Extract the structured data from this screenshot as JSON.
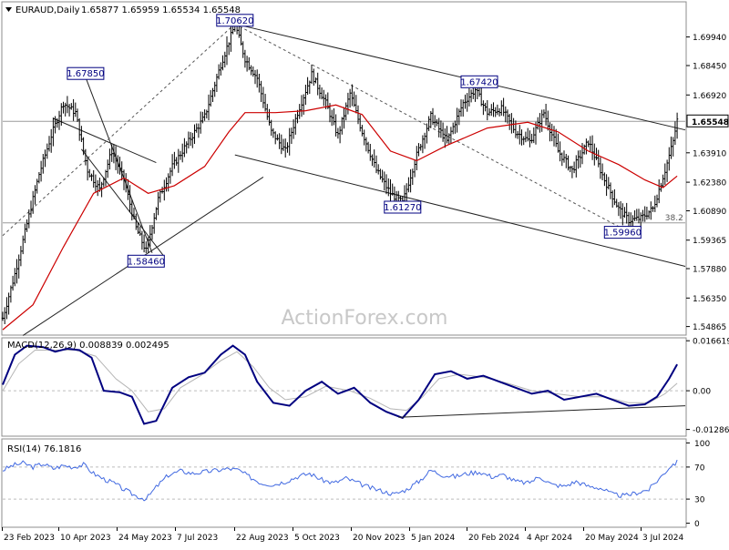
{
  "header": {
    "symbol": "EURAUD,Daily",
    "ohlc": "1.65877 1.65959 1.65534 1.65548"
  },
  "watermark": "ActionForex.com",
  "chart_data": [
    {
      "type": "candlestick",
      "title": "EURAUD,Daily",
      "y_ticks": [
        "1.69940",
        "1.68450",
        "1.66920",
        "1.63910",
        "1.62380",
        "1.60890",
        "1.59365",
        "1.57880",
        "1.56350",
        "1.54865"
      ],
      "ylim": [
        1.5442,
        1.7177
      ],
      "last_price": "1.65548",
      "x_ticks": [
        "23 Feb 2023",
        "10 Apr 2023",
        "24 May 2023",
        "7 Jul 2023",
        "22 Aug 2023",
        "5 Oct 2023",
        "20 Nov 2023",
        "5 Jan 2024",
        "20 Feb 2024",
        "4 Apr 2024",
        "20 May 2024",
        "3 Jul 2024"
      ],
      "close_path": [
        [
          0,
          1.553
        ],
        [
          6,
          1.576
        ],
        [
          12,
          1.602
        ],
        [
          18,
          1.628
        ],
        [
          24,
          1.648
        ],
        [
          30,
          1.665
        ],
        [
          36,
          1.66
        ],
        [
          42,
          1.63
        ],
        [
          48,
          1.62
        ],
        [
          54,
          1.64
        ],
        [
          60,
          1.625
        ],
        [
          66,
          1.6
        ],
        [
          71,
          1.588
        ],
        [
          77,
          1.615
        ],
        [
          84,
          1.632
        ],
        [
          92,
          1.645
        ],
        [
          100,
          1.658
        ],
        [
          108,
          1.685
        ],
        [
          115,
          1.706
        ],
        [
          120,
          1.688
        ],
        [
          126,
          1.678
        ],
        [
          133,
          1.65
        ],
        [
          140,
          1.64
        ],
        [
          146,
          1.66
        ],
        [
          153,
          1.68
        ],
        [
          160,
          1.665
        ],
        [
          166,
          1.648
        ],
        [
          172,
          1.67
        ],
        [
          178,
          1.65
        ],
        [
          185,
          1.63
        ],
        [
          192,
          1.618
        ],
        [
          198,
          1.613
        ],
        [
          205,
          1.638
        ],
        [
          212,
          1.658
        ],
        [
          220,
          1.645
        ],
        [
          228,
          1.665
        ],
        [
          234,
          1.672
        ],
        [
          240,
          1.66
        ],
        [
          247,
          1.662
        ],
        [
          254,
          1.65
        ],
        [
          261,
          1.645
        ],
        [
          268,
          1.66
        ],
        [
          275,
          1.64
        ],
        [
          282,
          1.63
        ],
        [
          290,
          1.645
        ],
        [
          298,
          1.625
        ],
        [
          305,
          1.61
        ],
        [
          310,
          1.604
        ],
        [
          316,
          1.605
        ],
        [
          322,
          1.61
        ],
        [
          328,
          1.63
        ],
        [
          332,
          1.645
        ],
        [
          334,
          1.656
        ]
      ],
      "ma_path": [
        [
          0,
          1.547
        ],
        [
          15,
          1.56
        ],
        [
          30,
          1.59
        ],
        [
          45,
          1.618
        ],
        [
          60,
          1.626
        ],
        [
          72,
          1.618
        ],
        [
          85,
          1.622
        ],
        [
          100,
          1.632
        ],
        [
          112,
          1.65
        ],
        [
          120,
          1.66
        ],
        [
          135,
          1.66
        ],
        [
          150,
          1.661
        ],
        [
          165,
          1.664
        ],
        [
          178,
          1.659
        ],
        [
          192,
          1.64
        ],
        [
          205,
          1.635
        ],
        [
          220,
          1.643
        ],
        [
          240,
          1.652
        ],
        [
          260,
          1.655
        ],
        [
          275,
          1.65
        ],
        [
          290,
          1.64
        ],
        [
          305,
          1.633
        ],
        [
          318,
          1.625
        ],
        [
          327,
          1.621
        ],
        [
          334,
          1.627
        ]
      ],
      "price_labels": [
        {
          "text": "1.70620",
          "x": 115,
          "y": 1.7062
        },
        {
          "text": "1.67850",
          "x": 41,
          "y": 1.6785
        },
        {
          "text": "1.67420",
          "x": 236,
          "y": 1.6742
        },
        {
          "text": "1.61270",
          "x": 198,
          "y": 1.6127
        },
        {
          "text": "1.59960",
          "x": 307,
          "y": 1.5996
        },
        {
          "text": "1.58460",
          "x": 71,
          "y": 1.5846
        }
      ],
      "annotations": [
        {
          "text": "38.2",
          "x": 328,
          "y": 1.6026
        }
      ],
      "trend_lines": [
        {
          "style": "solid",
          "from": [
            115,
            1.7062
          ],
          "to": [
            338,
            1.651
          ]
        },
        {
          "style": "solid",
          "from": [
            115,
            1.638
          ],
          "to": [
            338,
            1.58
          ]
        },
        {
          "style": "solid",
          "from": [
            10,
            1.544
          ],
          "to": [
            129,
            1.6265
          ]
        },
        {
          "style": "solid",
          "from": [
            41,
            1.6785
          ],
          "to": [
            74,
            1.587
          ]
        },
        {
          "style": "solid",
          "from": [
            39,
            1.641
          ],
          "to": [
            80,
            1.585
          ]
        },
        {
          "style": "solid",
          "from": [
            25,
            1.657
          ],
          "to": [
            76,
            1.634
          ]
        },
        {
          "style": "dotted",
          "from": [
            0,
            1.596
          ],
          "to": [
            115,
            1.7062
          ]
        },
        {
          "style": "dotted",
          "from": [
            115,
            1.7062
          ],
          "to": [
            307,
            1.5996
          ]
        }
      ],
      "horizontal_lines": [
        1.65548,
        1.6026
      ]
    },
    {
      "type": "line",
      "title": "MACD(12,26,9) 0.008839 0.002495",
      "legend": "MACD(12,26,9) 0.008839 0.002495",
      "y_ticks": [
        "0.016619",
        "0.00",
        "-0.012864"
      ],
      "ylim": [
        -0.0151,
        0.0176
      ],
      "series": [
        {
          "points": [
            [
              0,
              0.002
            ],
            [
              6,
              0.012
            ],
            [
              12,
              0.015
            ],
            [
              20,
              0.0145
            ],
            [
              26,
              0.013
            ],
            [
              32,
              0.014
            ],
            [
              38,
              0.0135
            ],
            [
              44,
              0.011
            ],
            [
              50,
              -0.0
            ],
            [
              58,
              -0.0005
            ],
            [
              64,
              -0.002
            ],
            [
              70,
              -0.011
            ],
            [
              76,
              -0.01
            ],
            [
              84,
              0.001
            ],
            [
              92,
              0.0045
            ],
            [
              100,
              0.006
            ],
            [
              108,
              0.012
            ],
            [
              114,
              0.015
            ],
            [
              120,
              0.012
            ],
            [
              126,
              0.003
            ],
            [
              134,
              -0.004
            ],
            [
              142,
              -0.005
            ],
            [
              150,
              0.0
            ],
            [
              158,
              0.003
            ],
            [
              166,
              -0.001
            ],
            [
              174,
              0.001
            ],
            [
              182,
              -0.004
            ],
            [
              190,
              -0.007
            ],
            [
              198,
              -0.009
            ],
            [
              206,
              -0.003
            ],
            [
              214,
              0.0055
            ],
            [
              222,
              0.0065
            ],
            [
              230,
              0.004
            ],
            [
              238,
              0.005
            ],
            [
              246,
              0.003
            ],
            [
              254,
              0.001
            ],
            [
              262,
              -0.001
            ],
            [
              270,
              0.0
            ],
            [
              278,
              -0.003
            ],
            [
              286,
              -0.002
            ],
            [
              294,
              -0.001
            ],
            [
              302,
              -0.003
            ],
            [
              310,
              -0.005
            ],
            [
              318,
              -0.0045
            ],
            [
              324,
              -0.002
            ],
            [
              330,
              0.004
            ],
            [
              334,
              0.0088
            ]
          ]
        },
        {
          "points": [
            [
              0,
              0.0
            ],
            [
              8,
              0.009
            ],
            [
              16,
              0.0135
            ],
            [
              26,
              0.0135
            ],
            [
              36,
              0.0135
            ],
            [
              46,
              0.0115
            ],
            [
              56,
              0.004
            ],
            [
              64,
              0.0
            ],
            [
              72,
              -0.007
            ],
            [
              80,
              -0.006
            ],
            [
              88,
              0.001
            ],
            [
              98,
              0.005
            ],
            [
              108,
              0.01
            ],
            [
              116,
              0.013
            ],
            [
              124,
              0.008
            ],
            [
              132,
              0.001
            ],
            [
              140,
              -0.003
            ],
            [
              150,
              -0.002
            ],
            [
              160,
              0.0015
            ],
            [
              172,
              0.0
            ],
            [
              182,
              -0.0025
            ],
            [
              192,
              -0.006
            ],
            [
              200,
              -0.0065
            ],
            [
              208,
              -0.002
            ],
            [
              216,
              0.004
            ],
            [
              226,
              0.0055
            ],
            [
              238,
              0.0045
            ],
            [
              250,
              0.0025
            ],
            [
              262,
              0.0
            ],
            [
              274,
              -0.001
            ],
            [
              286,
              -0.002
            ],
            [
              298,
              -0.002
            ],
            [
              310,
              -0.004
            ],
            [
              320,
              -0.004
            ],
            [
              328,
              -0.001
            ],
            [
              334,
              0.0025
            ]
          ]
        }
      ],
      "trend_line": {
        "from": [
          196,
          -0.0088
        ],
        "to": [
          338,
          -0.005
        ]
      }
    },
    {
      "type": "line",
      "title": "RSI(14) 76.1816",
      "legend": "RSI(14) 76.1816",
      "y_ticks": [
        "100",
        "70",
        "30",
        "0"
      ],
      "ylim": [
        -5,
        105
      ],
      "levels": [
        70,
        30
      ],
      "series": [
        {
          "points": [
            [
              0,
              66
            ],
            [
              5,
              72
            ],
            [
              10,
              75
            ],
            [
              15,
              70
            ],
            [
              20,
              74
            ],
            [
              25,
              68
            ],
            [
              30,
              72
            ],
            [
              35,
              70
            ],
            [
              40,
              73
            ],
            [
              45,
              62
            ],
            [
              50,
              55
            ],
            [
              55,
              50
            ],
            [
              60,
              42
            ],
            [
              66,
              34
            ],
            [
              71,
              30
            ],
            [
              76,
              45
            ],
            [
              82,
              60
            ],
            [
              88,
              65
            ],
            [
              94,
              62
            ],
            [
              100,
              64
            ],
            [
              106,
              66
            ],
            [
              112,
              68
            ],
            [
              117,
              66
            ],
            [
              122,
              58
            ],
            [
              128,
              50
            ],
            [
              134,
              48
            ],
            [
              140,
              52
            ],
            [
              146,
              58
            ],
            [
              152,
              62
            ],
            [
              158,
              54
            ],
            [
              164,
              50
            ],
            [
              170,
              56
            ],
            [
              176,
              50
            ],
            [
              182,
              44
            ],
            [
              188,
              40
            ],
            [
              194,
              36
            ],
            [
              200,
              42
            ],
            [
              206,
              52
            ],
            [
              212,
              66
            ],
            [
              218,
              60
            ],
            [
              224,
              58
            ],
            [
              230,
              62
            ],
            [
              236,
              64
            ],
            [
              242,
              58
            ],
            [
              248,
              60
            ],
            [
              254,
              52
            ],
            [
              260,
              50
            ],
            [
              266,
              58
            ],
            [
              272,
              48
            ],
            [
              278,
              46
            ],
            [
              284,
              52
            ],
            [
              290,
              46
            ],
            [
              296,
              44
            ],
            [
              302,
              36
            ],
            [
              308,
              34
            ],
            [
              314,
              38
            ],
            [
              320,
              42
            ],
            [
              326,
              58
            ],
            [
              331,
              72
            ],
            [
              334,
              76
            ]
          ]
        }
      ]
    }
  ]
}
